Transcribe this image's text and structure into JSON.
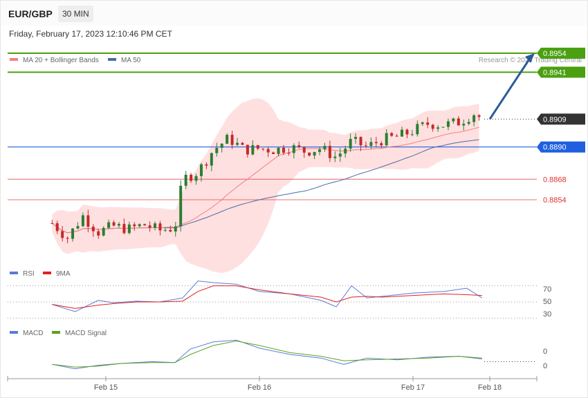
{
  "header": {
    "pair": "EUR/GBP",
    "timeframe": "30 MIN",
    "datetime": "Friday, February 17, 2023 12:10:46 PM CET"
  },
  "credit": "Research © 2023 Trading Central",
  "colors": {
    "support": "#e03030",
    "resistance": "#4aa010",
    "pivot": "#2060e0",
    "last": "#333333",
    "arrow": "#2a5a9a",
    "bb_fill": "#ffd6d6",
    "ma20": "#f08080",
    "ma50": "#4a6aa8",
    "up": "#2e7d32",
    "down": "#c62828"
  },
  "chart_data": [
    {
      "type": "line",
      "title": "EUR/GBP 30 MIN",
      "legend": [
        {
          "name": "MA 20 + Bollinger Bands",
          "color": "#f08080"
        },
        {
          "name": "MA 50",
          "color": "#4a6aa8"
        }
      ],
      "x_labels": [
        "Feb 15",
        "Feb 16",
        "Feb 17",
        "Feb 18"
      ],
      "ylim": [
        0.8813,
        0.8962
      ],
      "levels": [
        {
          "value": 0.8954,
          "label": "0.8954",
          "kind": "resistance"
        },
        {
          "value": 0.8941,
          "label": "0.8941",
          "kind": "resistance"
        },
        {
          "value": 0.8909,
          "label": "0.8909",
          "kind": "last"
        },
        {
          "value": 0.889,
          "label": "0.8890",
          "kind": "pivot"
        },
        {
          "value": 0.8868,
          "label": "0.8868",
          "kind": "support"
        },
        {
          "value": 0.8854,
          "label": "0.8854",
          "kind": "support"
        }
      ],
      "price_series": [
        {
          "day": 14.65,
          "close": 0.8838
        },
        {
          "day": 14.75,
          "close": 0.8828
        },
        {
          "day": 14.85,
          "close": 0.8843
        },
        {
          "day": 14.95,
          "close": 0.8832
        },
        {
          "day": 15.05,
          "close": 0.8836
        },
        {
          "day": 15.15,
          "close": 0.8834
        },
        {
          "day": 15.25,
          "close": 0.8837
        },
        {
          "day": 15.35,
          "close": 0.8833
        },
        {
          "day": 15.45,
          "close": 0.8835
        },
        {
          "day": 15.5,
          "close": 0.8868
        },
        {
          "day": 15.6,
          "close": 0.8873
        },
        {
          "day": 15.7,
          "close": 0.8888
        },
        {
          "day": 15.8,
          "close": 0.8896
        },
        {
          "day": 15.9,
          "close": 0.8888
        },
        {
          "day": 16.0,
          "close": 0.8889
        },
        {
          "day": 16.1,
          "close": 0.8888
        },
        {
          "day": 16.2,
          "close": 0.889
        },
        {
          "day": 16.3,
          "close": 0.8887
        },
        {
          "day": 16.4,
          "close": 0.8889
        },
        {
          "day": 16.5,
          "close": 0.8883
        },
        {
          "day": 16.6,
          "close": 0.8894
        },
        {
          "day": 16.7,
          "close": 0.889
        },
        {
          "day": 16.8,
          "close": 0.8895
        },
        {
          "day": 16.9,
          "close": 0.8897
        },
        {
          "day": 17.0,
          "close": 0.8901
        },
        {
          "day": 17.1,
          "close": 0.8906
        },
        {
          "day": 17.2,
          "close": 0.8905
        },
        {
          "day": 17.3,
          "close": 0.8907
        },
        {
          "day": 17.4,
          "close": 0.8913
        },
        {
          "day": 17.45,
          "close": 0.8909
        }
      ],
      "forecast_arrow": {
        "from": 0.8909,
        "to": 0.8954
      }
    },
    {
      "type": "line",
      "title": "RSI",
      "legend": [
        {
          "name": "RSI",
          "color": "#5a7ad6"
        },
        {
          "name": "9MA",
          "color": "#e02020"
        }
      ],
      "reference_lines": [
        70,
        50,
        30
      ],
      "ylim": [
        20,
        80
      ],
      "series": [
        {
          "name": "RSI",
          "day": [
            14.65,
            14.8,
            14.95,
            15.05,
            15.2,
            15.35,
            15.5,
            15.6,
            15.7,
            15.85,
            16.0,
            16.2,
            16.4,
            16.5,
            16.6,
            16.7,
            16.8,
            17.0,
            17.2,
            17.35,
            17.45
          ],
          "values": [
            47,
            38,
            52,
            49,
            51,
            50,
            55,
            76,
            74,
            72,
            63,
            60,
            52,
            44,
            70,
            55,
            57,
            61,
            63,
            67,
            55
          ]
        },
        {
          "name": "9MA",
          "day": [
            14.65,
            14.8,
            14.95,
            15.05,
            15.2,
            15.35,
            15.5,
            15.6,
            15.7,
            15.85,
            16.0,
            16.2,
            16.4,
            16.5,
            16.6,
            16.7,
            16.8,
            17.0,
            17.2,
            17.35,
            17.45
          ],
          "values": [
            47,
            42,
            46,
            48,
            50,
            50,
            51,
            63,
            70,
            70,
            65,
            60,
            56,
            50,
            56,
            57,
            56,
            58,
            60,
            59,
            58
          ]
        }
      ]
    },
    {
      "type": "line",
      "title": "MACD",
      "legend": [
        {
          "name": "MACD",
          "color": "#5a7ad6"
        },
        {
          "name": "MACD Signal",
          "color": "#5aa020"
        }
      ],
      "y_tick_labels": [
        "0",
        "0"
      ],
      "series": [
        {
          "name": "MACD",
          "day": [
            14.65,
            14.8,
            14.95,
            15.1,
            15.3,
            15.45,
            15.55,
            15.7,
            15.85,
            16.0,
            16.2,
            16.4,
            16.55,
            16.7,
            16.9,
            17.1,
            17.3,
            17.45
          ],
          "values": [
            -0.0001,
            -0.0006,
            -0.0002,
            0.0,
            0.0002,
            0.0001,
            0.0016,
            0.0024,
            0.0026,
            0.0017,
            0.001,
            0.0006,
            -0.0001,
            0.0006,
            0.0004,
            0.0007,
            0.0008,
            0.0005
          ]
        },
        {
          "name": "MACD Signal",
          "day": [
            14.65,
            14.8,
            14.95,
            15.1,
            15.3,
            15.45,
            15.55,
            15.7,
            15.85,
            16.0,
            16.2,
            16.4,
            16.55,
            16.7,
            16.9,
            17.1,
            17.3,
            17.45
          ],
          "values": [
            -0.0001,
            -0.0004,
            -0.0003,
            0.0,
            0.0001,
            0.0001,
            0.001,
            0.002,
            0.0025,
            0.002,
            0.0012,
            0.0008,
            0.0003,
            0.0004,
            0.0005,
            0.0006,
            0.0008,
            0.0006
          ]
        }
      ]
    }
  ]
}
